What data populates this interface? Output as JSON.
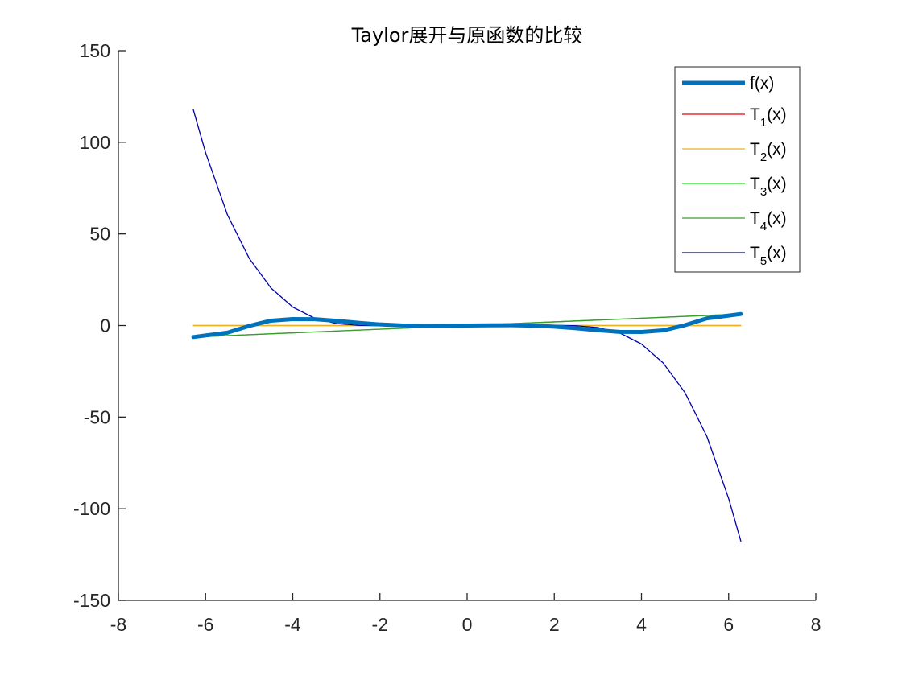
{
  "chart_data": {
    "type": "line",
    "title": "Taylor展开与原函数的比较",
    "xlabel": "",
    "ylabel": "",
    "xlim": [
      -8,
      8
    ],
    "ylim": [
      -150,
      150
    ],
    "x_ticks": [
      "-8",
      "-6",
      "-4",
      "-2",
      "0",
      "2",
      "4",
      "6",
      "8"
    ],
    "y_ticks": [
      "150",
      "100",
      "50",
      "0",
      "-50",
      "-100",
      "-150"
    ],
    "x_tick_values": [
      -8,
      -6,
      -4,
      -2,
      0,
      2,
      4,
      6,
      8
    ],
    "y_tick_values": [
      150,
      100,
      50,
      0,
      -50,
      -100,
      -150
    ],
    "grid": false,
    "legend_position": "top-right",
    "series": [
      {
        "legend_main": "f(x)",
        "legend_sub": "",
        "legend_tail": "",
        "color": "#0072BD",
        "emphasis": "bold",
        "x": [
          -6.28,
          -5.5,
          -5.0,
          -4.5,
          -4.0,
          -3.5,
          -3.0,
          -2.5,
          -2.0,
          -1.5,
          -1.0,
          -0.5,
          0,
          0.5,
          1.0,
          1.5,
          2.0,
          2.5,
          3.0,
          3.5,
          4.0,
          4.5,
          5.0,
          5.5,
          6.28
        ],
        "y": [
          -6.28,
          -3.89,
          -0.21,
          2.64,
          3.51,
          3.47,
          2.58,
          1.5,
          0.58,
          0.06,
          -0.17,
          -0.12,
          0,
          0.12,
          0.17,
          -0.06,
          -0.58,
          -1.5,
          -2.58,
          -3.47,
          -3.51,
          -2.64,
          0.21,
          3.89,
          6.28
        ]
      },
      {
        "legend_main": "T",
        "legend_sub": "1",
        "legend_tail": "(x)",
        "color": "#E8000B",
        "x": [
          -6.28,
          6.28
        ],
        "y": [
          0,
          0
        ]
      },
      {
        "legend_main": "T",
        "legend_sub": "2",
        "legend_tail": "(x)",
        "color": "#EDB120",
        "x": [
          -6.28,
          6.28
        ],
        "y": [
          0,
          0
        ]
      },
      {
        "legend_main": "T",
        "legend_sub": "3",
        "legend_tail": "(x)",
        "color": "#1AE01A",
        "x": [
          -6.28,
          6.28
        ],
        "y": [
          -6.28,
          6.28
        ]
      },
      {
        "legend_main": "T",
        "legend_sub": "4",
        "legend_tail": "(x)",
        "color": "#3D9A2E",
        "x": [
          -6.28,
          6.28
        ],
        "y": [
          -6.28,
          6.28
        ]
      },
      {
        "legend_main": "T",
        "legend_sub": "5",
        "legend_tail": "(x)",
        "color": "#0000A8",
        "x": [
          -6.28,
          -6.0,
          -5.5,
          -5.0,
          -4.5,
          -4.0,
          -3.5,
          -3.0,
          -2.5,
          -2.0,
          -1.5,
          -1.0,
          -0.5,
          0,
          0.5,
          1.0,
          1.5,
          2.0,
          2.5,
          3.0,
          3.5,
          4.0,
          4.5,
          5.0,
          5.5,
          6.0,
          6.28
        ],
        "y": [
          117.7,
          94.4,
          60.5,
          36.7,
          20.5,
          10.1,
          4.0,
          1.1,
          0.1,
          -0.1,
          -0.2,
          -0.3,
          -0.2,
          0,
          0.2,
          0.3,
          0.2,
          0.1,
          -0.1,
          -1.1,
          -4.0,
          -10.1,
          -20.5,
          -36.7,
          -60.5,
          -94.4,
          -117.7
        ]
      }
    ]
  }
}
